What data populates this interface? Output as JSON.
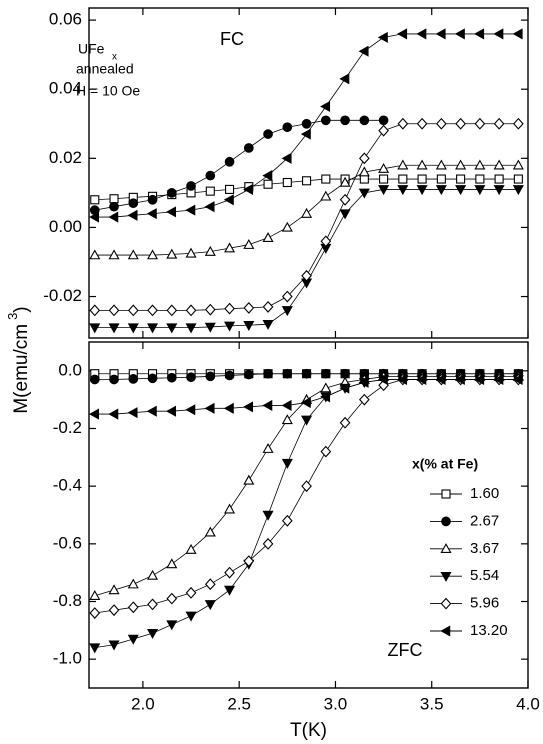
{
  "chart_data": [
    {
      "type": "line",
      "ylabel": [
        "M(emu/cm",
        "3",
        ")"
      ],
      "annotations": [
        "FC",
        "UFe",
        "x",
        "annealed",
        "H = 10 Oe"
      ],
      "xlim": [
        1.72,
        4.0
      ],
      "xticks": [
        2,
        2.5,
        3,
        3.5,
        4
      ],
      "ylim": [
        -0.032,
        0.0635
      ],
      "yticks": [
        -0.02,
        {
          "value": 0,
          "label": "0.00"
        },
        0.02,
        0.04,
        0.06
      ],
      "x": [
        1.75,
        1.85,
        1.95,
        2.05,
        2.15,
        2.25,
        2.35,
        2.45,
        2.55,
        2.65,
        2.75,
        2.85,
        2.95,
        3.05,
        3.15,
        3.25,
        3.35,
        3.45,
        3.55,
        3.65,
        3.75,
        3.85,
        3.95
      ],
      "series": [
        {
          "color": "#000000",
          "marker": "square",
          "filled": false,
          "values": [
            0.008,
            0.0083,
            0.0087,
            0.009,
            0.0095,
            0.01,
            0.0105,
            0.011,
            0.0118,
            0.0125,
            0.013,
            0.0135,
            0.014,
            0.014,
            0.014,
            0.014,
            0.014,
            0.014,
            0.014,
            0.014,
            0.014,
            0.014,
            0.014
          ]
        },
        {
          "color": "#000000",
          "marker": "circle",
          "filled": true,
          "values": [
            0.005,
            0.006,
            0.007,
            0.008,
            0.01,
            0.012,
            0.015,
            0.019,
            0.023,
            0.027,
            0.029,
            0.03,
            0.031,
            0.031,
            0.031,
            0.031,
            null,
            null,
            null,
            null,
            null,
            null,
            null
          ]
        },
        {
          "color": "#000000",
          "marker": "triangle-up",
          "filled": false,
          "values": [
            -0.008,
            -0.008,
            -0.008,
            -0.008,
            -0.0078,
            -0.0075,
            -0.007,
            -0.006,
            -0.005,
            -0.003,
            0,
            0.004,
            0.009,
            0.013,
            0.016,
            0.017,
            0.018,
            0.018,
            0.018,
            0.018,
            0.018,
            0.018,
            0.018
          ]
        },
        {
          "color": "#000000",
          "marker": "triangle-down",
          "filled": true,
          "values": [
            -0.029,
            -0.029,
            -0.029,
            -0.029,
            -0.029,
            -0.029,
            -0.0288,
            -0.0285,
            -0.0283,
            -0.028,
            -0.024,
            -0.016,
            -0.006,
            0.004,
            0.01,
            0.011,
            0.011,
            0.011,
            0.011,
            0.011,
            0.011,
            0.011,
            0.011
          ]
        },
        {
          "color": "#000000",
          "marker": "diamond",
          "filled": false,
          "values": [
            -0.024,
            -0.024,
            -0.024,
            -0.024,
            -0.024,
            -0.024,
            -0.0238,
            -0.0235,
            -0.0233,
            -0.023,
            -0.02,
            -0.014,
            -0.004,
            0.008,
            0.02,
            0.028,
            0.03,
            0.03,
            0.03,
            0.03,
            0.03,
            0.03,
            0.03
          ]
        },
        {
          "color": "#000000",
          "marker": "triangle-left",
          "filled": true,
          "values": [
            0.003,
            0.003,
            0.0035,
            0.004,
            0.0045,
            0.005,
            0.006,
            0.008,
            0.011,
            0.015,
            0.02,
            0.027,
            0.035,
            0.043,
            0.051,
            0.055,
            0.056,
            0.056,
            0.056,
            0.056,
            0.056,
            0.056,
            0.056
          ]
        }
      ]
    },
    {
      "type": "line",
      "xlabel": "T(K)",
      "annotations": [
        "ZFC"
      ],
      "legend_title": "x(% at Fe)",
      "xlim": [
        1.72,
        4.0
      ],
      "xticks": [
        {
          "value": 2,
          "label": "2.0"
        },
        2.5,
        {
          "value": 3,
          "label": "3.0"
        },
        3.5,
        {
          "value": 4,
          "label": "4.0"
        }
      ],
      "ylim": [
        -1.1,
        0.1
      ],
      "yticks": [
        {
          "value": -1,
          "label": "-1.0"
        },
        -0.8,
        -0.6,
        -0.4,
        -0.2,
        {
          "value": 0,
          "label": "0.0"
        }
      ],
      "x": [
        1.75,
        1.85,
        1.95,
        2.05,
        2.15,
        2.25,
        2.35,
        2.45,
        2.55,
        2.65,
        2.75,
        2.85,
        2.95,
        3.05,
        3.15,
        3.25,
        3.35,
        3.45,
        3.55,
        3.65,
        3.75,
        3.85,
        3.95
      ],
      "series": [
        {
          "name": "1.60",
          "color": "#000000",
          "marker": "square",
          "filled": false,
          "values": [
            -0.01,
            -0.01,
            -0.01,
            -0.01,
            -0.01,
            -0.01,
            -0.01,
            -0.01,
            -0.01,
            -0.01,
            -0.01,
            -0.01,
            -0.01,
            -0.01,
            -0.01,
            -0.01,
            -0.01,
            -0.01,
            -0.01,
            -0.01,
            -0.01,
            -0.01,
            -0.01
          ]
        },
        {
          "name": "2.67",
          "color": "#000000",
          "marker": "circle",
          "filled": true,
          "values": [
            -0.03,
            -0.03,
            -0.028,
            -0.026,
            -0.024,
            -0.022,
            -0.019,
            -0.016,
            -0.013,
            -0.01,
            -0.01,
            -0.01,
            -0.01,
            -0.01,
            -0.01,
            -0.01,
            -0.01,
            -0.01,
            -0.01,
            -0.01,
            -0.01,
            -0.01,
            -0.01
          ]
        },
        {
          "name": "3.67",
          "color": "#000000",
          "marker": "triangle-up",
          "filled": false,
          "values": [
            -0.78,
            -0.76,
            -0.74,
            -0.71,
            -0.67,
            -0.62,
            -0.56,
            -0.48,
            -0.38,
            -0.27,
            -0.17,
            -0.1,
            -0.06,
            -0.04,
            -0.03,
            -0.02,
            -0.02,
            -0.02,
            -0.02,
            -0.02,
            -0.02,
            -0.02,
            -0.02
          ]
        },
        {
          "name": "5.54",
          "color": "#000000",
          "marker": "triangle-down",
          "filled": true,
          "values": [
            -0.96,
            -0.95,
            -0.93,
            -0.91,
            -0.88,
            -0.85,
            -0.81,
            -0.76,
            -0.67,
            -0.5,
            -0.32,
            -0.17,
            -0.09,
            -0.06,
            -0.04,
            -0.03,
            -0.03,
            -0.03,
            -0.03,
            -0.03,
            -0.03,
            -0.03,
            -0.03
          ]
        },
        {
          "name": "5.96",
          "color": "#000000",
          "marker": "diamond",
          "filled": false,
          "values": [
            -0.84,
            -0.83,
            -0.82,
            -0.81,
            -0.79,
            -0.77,
            -0.74,
            -0.7,
            -0.66,
            -0.6,
            -0.52,
            -0.4,
            -0.28,
            -0.18,
            -0.1,
            -0.05,
            -0.03,
            -0.03,
            -0.03,
            -0.03,
            -0.03,
            -0.03,
            -0.03
          ]
        },
        {
          "name": "13.20",
          "color": "#000000",
          "marker": "triangle-left",
          "filled": true,
          "values": [
            -0.15,
            -0.15,
            -0.145,
            -0.14,
            -0.14,
            -0.135,
            -0.13,
            -0.13,
            -0.125,
            -0.12,
            -0.12,
            -0.11,
            -0.09,
            -0.06,
            -0.04,
            -0.03,
            -0.03,
            -0.03,
            -0.03,
            -0.03,
            -0.03,
            -0.03,
            -0.03
          ]
        }
      ]
    }
  ]
}
